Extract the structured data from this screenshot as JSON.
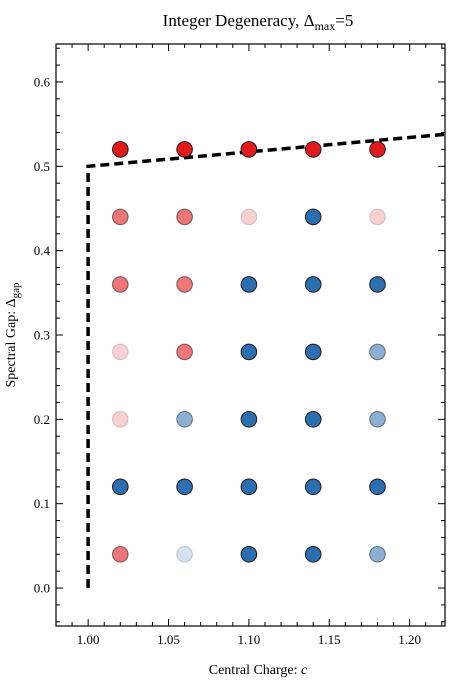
{
  "chart_data": {
    "type": "scatter",
    "title": "Integer Degeneracy, Δ",
    "title_sub": "max",
    "title_suffix": "=5",
    "xlabel_text": "Central Charge: ",
    "xlabel_var": "c",
    "ylabel_text": "Spectral Gap: Δ",
    "ylabel_sub": "gap",
    "xlim": [
      0.98,
      1.222
    ],
    "ylim": [
      -0.045,
      0.645
    ],
    "x_ticks": [
      1.0,
      1.05,
      1.1,
      1.15,
      1.2
    ],
    "x_tick_labels": [
      "1.00",
      "1.05",
      "1.10",
      "1.15",
      "1.20"
    ],
    "y_ticks": [
      0.0,
      0.1,
      0.2,
      0.3,
      0.4,
      0.5,
      0.6
    ],
    "y_tick_labels": [
      "0.0",
      "0.1",
      "0.2",
      "0.3",
      "0.4",
      "0.5",
      "0.6"
    ],
    "grid": false,
    "colors": {
      "red": "#e31a1c",
      "blue": "#2c6fb0",
      "boundary": "#000000"
    },
    "boundary": {
      "style": "dashed",
      "points": [
        [
          1.0,
          0.0
        ],
        [
          1.0,
          0.5
        ],
        [
          1.222,
          0.538
        ]
      ]
    },
    "points": [
      {
        "x": 1.02,
        "y": 0.52,
        "color": "red",
        "opacity": 1.0
      },
      {
        "x": 1.06,
        "y": 0.52,
        "color": "red",
        "opacity": 1.0
      },
      {
        "x": 1.1,
        "y": 0.52,
        "color": "red",
        "opacity": 1.0
      },
      {
        "x": 1.14,
        "y": 0.52,
        "color": "red",
        "opacity": 1.0
      },
      {
        "x": 1.18,
        "y": 0.52,
        "color": "red",
        "opacity": 1.0
      },
      {
        "x": 1.02,
        "y": 0.44,
        "color": "red",
        "opacity": 0.6
      },
      {
        "x": 1.06,
        "y": 0.44,
        "color": "red",
        "opacity": 0.6
      },
      {
        "x": 1.1,
        "y": 0.44,
        "color": "red",
        "opacity": 0.2
      },
      {
        "x": 1.14,
        "y": 0.44,
        "color": "blue",
        "opacity": 1.0
      },
      {
        "x": 1.18,
        "y": 0.44,
        "color": "red",
        "opacity": 0.2
      },
      {
        "x": 1.02,
        "y": 0.36,
        "color": "red",
        "opacity": 0.6
      },
      {
        "x": 1.06,
        "y": 0.36,
        "color": "red",
        "opacity": 0.6
      },
      {
        "x": 1.1,
        "y": 0.36,
        "color": "blue",
        "opacity": 1.0
      },
      {
        "x": 1.14,
        "y": 0.36,
        "color": "blue",
        "opacity": 1.0
      },
      {
        "x": 1.18,
        "y": 0.36,
        "color": "blue",
        "opacity": 1.0
      },
      {
        "x": 1.02,
        "y": 0.28,
        "color": "red",
        "opacity": 0.2
      },
      {
        "x": 1.06,
        "y": 0.28,
        "color": "red",
        "opacity": 0.6
      },
      {
        "x": 1.1,
        "y": 0.28,
        "color": "blue",
        "opacity": 1.0
      },
      {
        "x": 1.14,
        "y": 0.28,
        "color": "blue",
        "opacity": 1.0
      },
      {
        "x": 1.18,
        "y": 0.28,
        "color": "blue",
        "opacity": 0.55
      },
      {
        "x": 1.02,
        "y": 0.2,
        "color": "red",
        "opacity": 0.2
      },
      {
        "x": 1.06,
        "y": 0.2,
        "color": "blue",
        "opacity": 0.55
      },
      {
        "x": 1.1,
        "y": 0.2,
        "color": "blue",
        "opacity": 1.0
      },
      {
        "x": 1.14,
        "y": 0.2,
        "color": "blue",
        "opacity": 1.0
      },
      {
        "x": 1.18,
        "y": 0.2,
        "color": "blue",
        "opacity": 0.55
      },
      {
        "x": 1.02,
        "y": 0.12,
        "color": "blue",
        "opacity": 1.0
      },
      {
        "x": 1.06,
        "y": 0.12,
        "color": "blue",
        "opacity": 1.0
      },
      {
        "x": 1.1,
        "y": 0.12,
        "color": "blue",
        "opacity": 1.0
      },
      {
        "x": 1.14,
        "y": 0.12,
        "color": "blue",
        "opacity": 1.0
      },
      {
        "x": 1.18,
        "y": 0.12,
        "color": "blue",
        "opacity": 1.0
      },
      {
        "x": 1.02,
        "y": 0.04,
        "color": "red",
        "opacity": 0.6
      },
      {
        "x": 1.06,
        "y": 0.04,
        "color": "blue",
        "opacity": 0.2
      },
      {
        "x": 1.1,
        "y": 0.04,
        "color": "blue",
        "opacity": 1.0
      },
      {
        "x": 1.14,
        "y": 0.04,
        "color": "blue",
        "opacity": 1.0
      },
      {
        "x": 1.18,
        "y": 0.04,
        "color": "blue",
        "opacity": 0.55
      }
    ]
  }
}
